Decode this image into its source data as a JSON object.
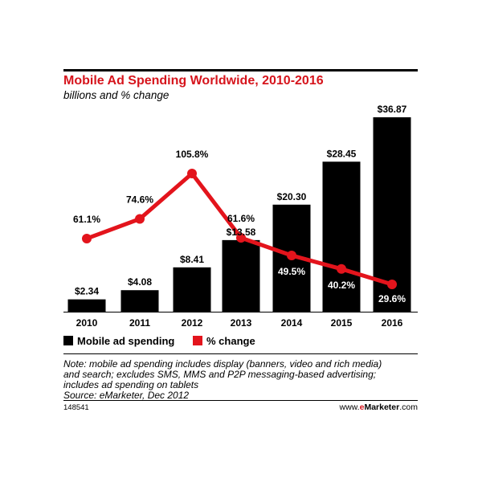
{
  "chart_data": {
    "type": "bar",
    "title": "Mobile Ad Spending Worldwide, 2010-2016",
    "subtitle": "billions and % change",
    "categories": [
      "2010",
      "2011",
      "2012",
      "2013",
      "2014",
      "2015",
      "2016"
    ],
    "series": [
      {
        "name": "Mobile ad spending",
        "type": "bar",
        "color": "#000000",
        "values": [
          2.34,
          4.08,
          8.41,
          13.58,
          20.3,
          28.45,
          36.87
        ],
        "labels": [
          "$2.34",
          "$4.08",
          "$8.41",
          "$13.58",
          "$20.30",
          "$28.45",
          "$36.87"
        ]
      },
      {
        "name": "% change",
        "type": "line",
        "color": "#e3141c",
        "values": [
          61.1,
          74.6,
          105.8,
          61.6,
          49.5,
          40.2,
          29.6
        ],
        "labels": [
          "61.1%",
          "74.6%",
          "105.8%",
          "61.6%",
          "49.5%",
          "40.2%",
          "29.6%"
        ]
      }
    ],
    "grid": false,
    "legend_placement": "bottom-left"
  },
  "note": {
    "lines": [
      "Note: mobile ad spending includes display (banners, video and rich media)",
      "and search; excludes SMS, MMS and P2P messaging-based advertising;",
      "includes ad spending on tablets",
      "Source: eMarketer, Dec 2012"
    ]
  },
  "footer": {
    "id": "148541",
    "site_prefix": "www.",
    "site_brand_e": "e",
    "site_brand_rest": "Marketer",
    "site_suffix": ".com"
  }
}
